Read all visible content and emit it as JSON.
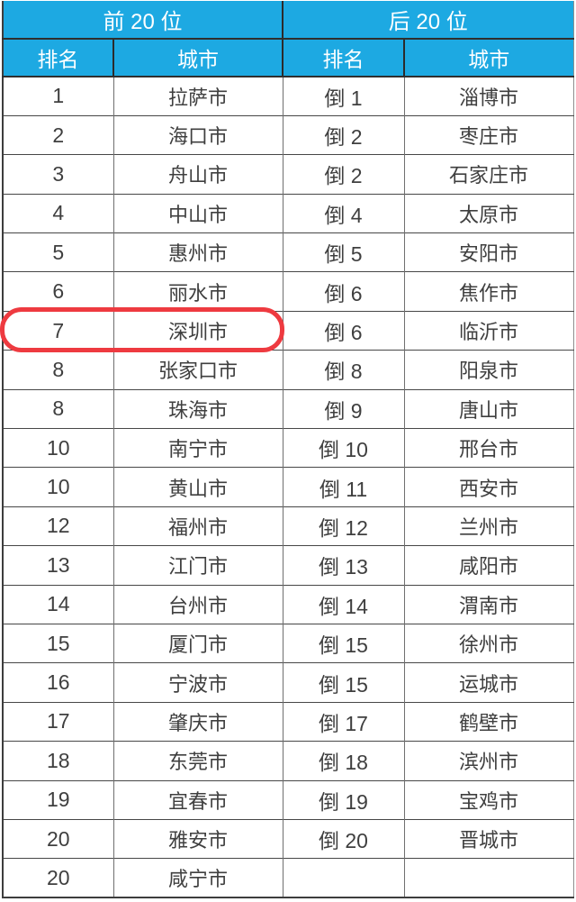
{
  "chart_data": {
    "type": "table",
    "group_headers": [
      "前 20 位",
      "后 20 位"
    ],
    "column_headers": [
      "排名",
      "城市",
      "排名",
      "城市"
    ],
    "rows": [
      [
        "1",
        "拉萨市",
        "倒 1",
        "淄博市"
      ],
      [
        "2",
        "海口市",
        "倒 2",
        "枣庄市"
      ],
      [
        "3",
        "舟山市",
        "倒 2",
        "石家庄市"
      ],
      [
        "4",
        "中山市",
        "倒 4",
        "太原市"
      ],
      [
        "5",
        "惠州市",
        "倒 5",
        "安阳市"
      ],
      [
        "6",
        "丽水市",
        "倒 6",
        "焦作市"
      ],
      [
        "7",
        "深圳市",
        "倒 6",
        "临沂市"
      ],
      [
        "8",
        "张家口市",
        "倒 8",
        "阳泉市"
      ],
      [
        "8",
        "珠海市",
        "倒 9",
        "唐山市"
      ],
      [
        "10",
        "南宁市",
        "倒 10",
        "邢台市"
      ],
      [
        "10",
        "黄山市",
        "倒 11",
        "西安市"
      ],
      [
        "12",
        "福州市",
        "倒 12",
        "兰州市"
      ],
      [
        "13",
        "江门市",
        "倒 13",
        "咸阳市"
      ],
      [
        "14",
        "台州市",
        "倒 14",
        "渭南市"
      ],
      [
        "15",
        "厦门市",
        "倒 15",
        "徐州市"
      ],
      [
        "16",
        "宁波市",
        "倒 15",
        "运城市"
      ],
      [
        "17",
        "肇庆市",
        "倒 17",
        "鹤壁市"
      ],
      [
        "18",
        "东莞市",
        "倒 18",
        "滨州市"
      ],
      [
        "19",
        "宜春市",
        "倒 19",
        "宝鸡市"
      ],
      [
        "20",
        "雅安市",
        "倒 20",
        "晋城市"
      ],
      [
        "20",
        "咸宁市",
        "",
        ""
      ]
    ],
    "highlight": {
      "row_index": 6,
      "span_columns": [
        0,
        1
      ],
      "rank": "7",
      "city": "深圳市",
      "style": "red-rounded-box"
    },
    "legend_position": "none",
    "grid": true
  },
  "colors": {
    "background": "#ffffff",
    "header_bg": "#1da9e2",
    "header_text": "#ffffff",
    "cell_text": "#3f3f3f",
    "border_dark": "#474747",
    "border_mid": "#6f6f6f",
    "highlight": "#ee3a40"
  }
}
